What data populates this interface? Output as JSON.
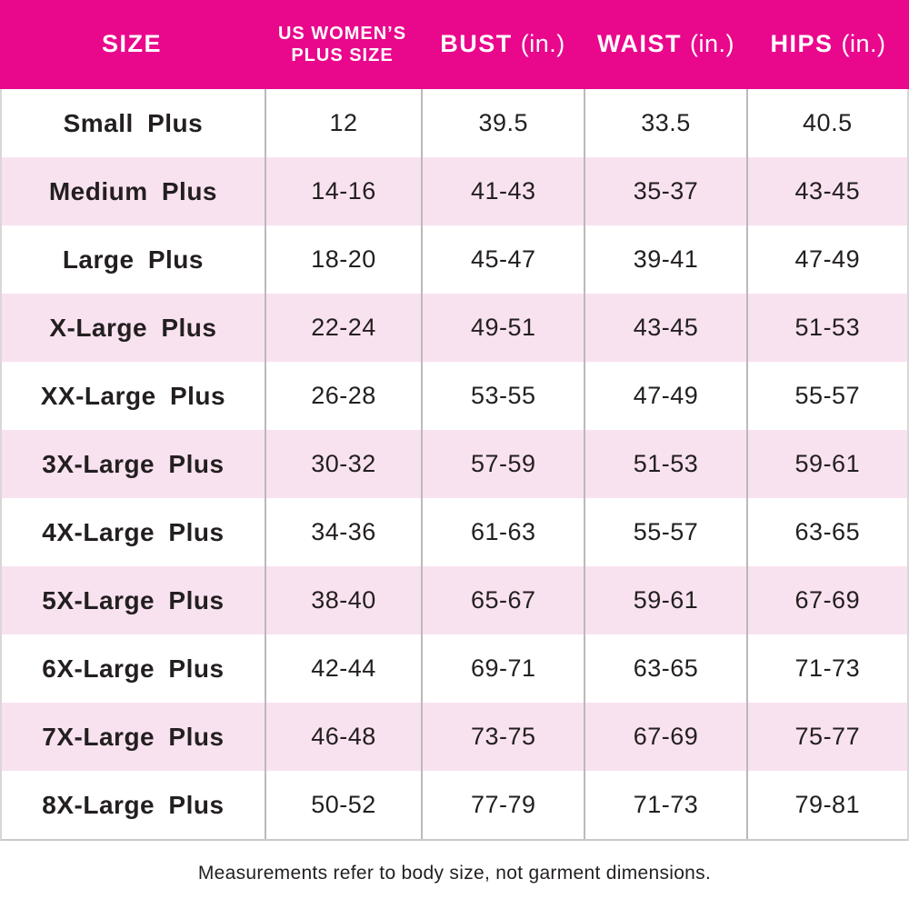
{
  "colors": {
    "header_bg": "#E9078C",
    "header_text": "#FFFFFF",
    "row_alt_bg": "#F9E2EF",
    "divider": "#BCB8BB",
    "text": "#231F20"
  },
  "header": {
    "col_size": "SIZE",
    "col_plus_line1": "US WOMEN’S",
    "col_plus_line2": "PLUS SIZE",
    "col_bust": "BUST",
    "col_waist": "WAIST",
    "col_hips": "HIPS",
    "unit": "(in.)"
  },
  "chart_data": {
    "type": "table",
    "title": "Plus size chart",
    "columns": [
      "SIZE",
      "US WOMEN'S PLUS SIZE",
      "BUST (in.)",
      "WAIST (in.)",
      "HIPS (in.)"
    ],
    "rows": [
      {
        "size": "Small Plus",
        "plus": "12",
        "bust": "39.5",
        "waist": "33.5",
        "hips": "40.5"
      },
      {
        "size": "Medium Plus",
        "plus": "14-16",
        "bust": "41-43",
        "waist": "35-37",
        "hips": "43-45"
      },
      {
        "size": "Large Plus",
        "plus": "18-20",
        "bust": "45-47",
        "waist": "39-41",
        "hips": "47-49"
      },
      {
        "size": "X-Large Plus",
        "plus": "22-24",
        "bust": "49-51",
        "waist": "43-45",
        "hips": "51-53"
      },
      {
        "size": "XX-Large Plus",
        "plus": "26-28",
        "bust": "53-55",
        "waist": "47-49",
        "hips": "55-57"
      },
      {
        "size": "3X-Large Plus",
        "plus": "30-32",
        "bust": "57-59",
        "waist": "51-53",
        "hips": "59-61"
      },
      {
        "size": "4X-Large Plus",
        "plus": "34-36",
        "bust": "61-63",
        "waist": "55-57",
        "hips": "63-65"
      },
      {
        "size": "5X-Large Plus",
        "plus": "38-40",
        "bust": "65-67",
        "waist": "59-61",
        "hips": "67-69"
      },
      {
        "size": "6X-Large Plus",
        "plus": "42-44",
        "bust": "69-71",
        "waist": "63-65",
        "hips": "71-73"
      },
      {
        "size": "7X-Large Plus",
        "plus": "46-48",
        "bust": "73-75",
        "waist": "67-69",
        "hips": "75-77"
      },
      {
        "size": "8X-Large Plus",
        "plus": "50-52",
        "bust": "77-79",
        "waist": "71-73",
        "hips": "79-81"
      }
    ]
  },
  "footer": {
    "note": "Measurements refer to body size, not garment dimensions."
  }
}
